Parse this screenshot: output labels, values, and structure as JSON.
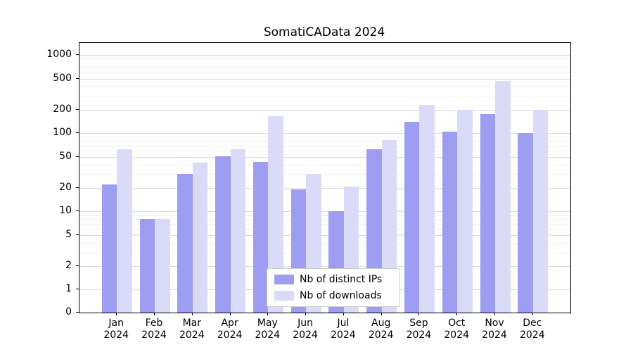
{
  "chart_data": {
    "type": "bar",
    "title": "SomatiCAData 2024",
    "scale": "symlog",
    "grid": true,
    "legend_position": "lower center",
    "background": "#ffffff",
    "axis_color": "#000000",
    "gridline_color": "#d9d9d9",
    "minor_gridline_color": "#efefef",
    "categories": [
      "Jan",
      "Feb",
      "Mar",
      "Apr",
      "May",
      "Jun",
      "Jul",
      "Aug",
      "Sep",
      "Oct",
      "Nov",
      "Dec"
    ],
    "year": "2024",
    "yticks": [
      0,
      1,
      2,
      5,
      10,
      20,
      50,
      100,
      200,
      500,
      1000
    ],
    "ylim": [
      0,
      1400
    ],
    "series": [
      {
        "name": "Nb of distinct IPs",
        "color": "#9d9df2",
        "values": [
          22,
          8,
          30,
          51,
          43,
          19,
          10,
          62,
          140,
          105,
          175,
          100
        ]
      },
      {
        "name": "Nb of downloads",
        "color": "#dadaf9",
        "values": [
          62,
          8,
          42,
          62,
          165,
          30,
          21,
          82,
          230,
          200,
          470,
          200
        ]
      }
    ]
  }
}
